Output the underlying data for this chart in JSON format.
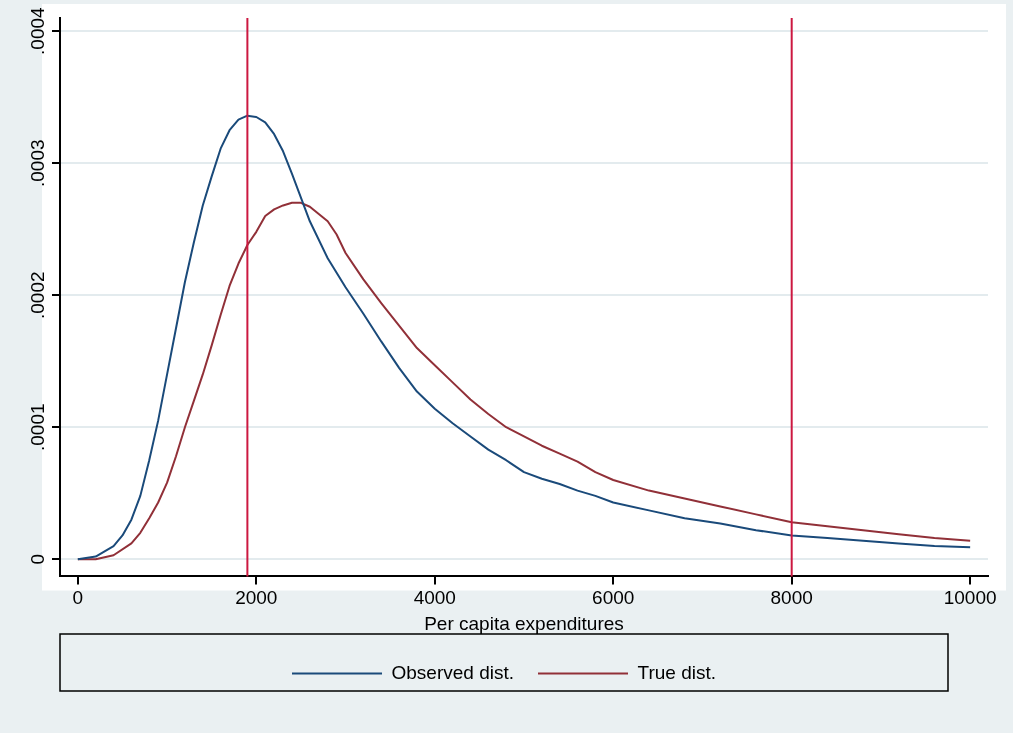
{
  "chart_data": {
    "type": "line",
    "xlabel": "Per capita expenditures",
    "xlim": [
      -200,
      10200
    ],
    "ylim": [
      -1.3e-05,
      0.00041
    ],
    "xticks": [
      0,
      2000,
      4000,
      6000,
      8000,
      10000
    ],
    "yticks": [
      0,
      {
        "value": 0.0001,
        "label": ".0001"
      },
      {
        "value": 0.0002,
        "label": ".0002"
      },
      {
        "value": 0.0003,
        "label": ".0003"
      },
      {
        "value": 0.0004,
        "label": ".0004"
      }
    ],
    "grid": "y",
    "legend": "bottom",
    "marker": "none",
    "line_style": "solid",
    "ref_lines": [
      {
        "axis": "x",
        "value": 1900,
        "color": "#cc1840"
      },
      {
        "axis": "x",
        "value": 8000,
        "color": "#cc1840"
      }
    ],
    "series": [
      {
        "name": "Observed dist.",
        "color": "#1a4a7a",
        "x": [
          0,
          200,
          400,
          500,
          600,
          700,
          800,
          900,
          1000,
          1100,
          1200,
          1300,
          1400,
          1500,
          1600,
          1700,
          1800,
          1900,
          2000,
          2100,
          2200,
          2300,
          2400,
          2600,
          2800,
          3000,
          3200,
          3400,
          3600,
          3800,
          4000,
          4200,
          4400,
          4600,
          4800,
          5000,
          5200,
          5400,
          5600,
          5800,
          6000,
          6400,
          6800,
          7200,
          7600,
          8000,
          8400,
          8800,
          9200,
          9600,
          10000
        ],
        "values": [
          0,
          2e-06,
          1e-05,
          1.8e-05,
          3e-05,
          4.8e-05,
          7.5e-05,
          0.000105,
          0.00014,
          0.000175,
          0.00021,
          0.00024,
          0.000268,
          0.00029,
          0.000311,
          0.000325,
          0.000333,
          0.000336,
          0.000335,
          0.000331,
          0.000322,
          0.000309,
          0.000292,
          0.000256,
          0.000228,
          0.000206,
          0.000186,
          0.000165,
          0.000145,
          0.000127,
          0.000114,
          0.000103,
          9.3e-05,
          8.3e-05,
          7.5e-05,
          6.6e-05,
          6.1e-05,
          5.7e-05,
          5.2e-05,
          4.8e-05,
          4.3e-05,
          3.7e-05,
          3.1e-05,
          2.7e-05,
          2.2e-05,
          1.8e-05,
          1.6e-05,
          1.4e-05,
          1.2e-05,
          1e-05,
          9e-06
        ]
      },
      {
        "name": "True dist.",
        "color": "#913038",
        "x": [
          0,
          200,
          400,
          600,
          700,
          800,
          900,
          1000,
          1100,
          1200,
          1300,
          1400,
          1500,
          1600,
          1700,
          1800,
          1900,
          2000,
          2100,
          2200,
          2300,
          2400,
          2500,
          2600,
          2800,
          2900,
          3000,
          3200,
          3400,
          3600,
          3800,
          4000,
          4200,
          4400,
          4600,
          4800,
          5000,
          5200,
          5400,
          5600,
          5800,
          6000,
          6400,
          6800,
          7200,
          7600,
          8000,
          8400,
          8800,
          9200,
          9600,
          10000
        ],
        "values": [
          0,
          0,
          3e-06,
          1.2e-05,
          2e-05,
          3.1e-05,
          4.3e-05,
          5.8e-05,
          7.8e-05,
          0.0001,
          0.00012,
          0.00014,
          0.000162,
          0.000185,
          0.000207,
          0.000224,
          0.000238,
          0.000248,
          0.00026,
          0.000265,
          0.000268,
          0.00027,
          0.00027,
          0.000267,
          0.000256,
          0.000246,
          0.000232,
          0.000212,
          0.000194,
          0.000177,
          0.00016,
          0.000147,
          0.000134,
          0.000121,
          0.00011,
          0.0001,
          9.3e-05,
          8.6e-05,
          8e-05,
          7.4e-05,
          6.6e-05,
          6e-05,
          5.2e-05,
          4.6e-05,
          4e-05,
          3.4e-05,
          2.8e-05,
          2.5e-05,
          2.2e-05,
          1.9e-05,
          1.6e-05,
          1.4e-05
        ]
      }
    ]
  }
}
